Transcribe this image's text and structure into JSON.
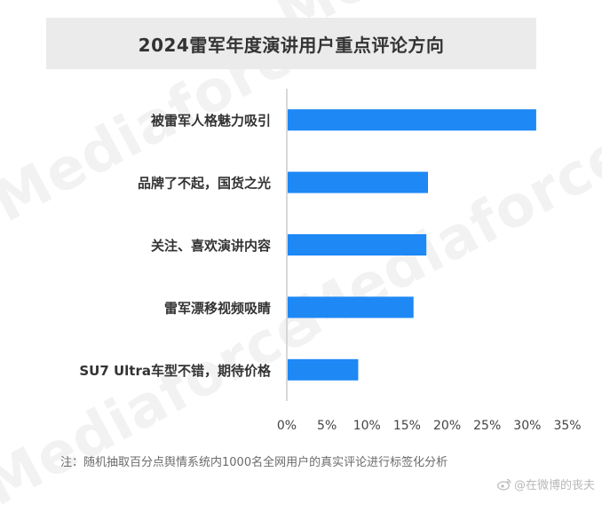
{
  "watermark": {
    "brand": "Mediaforce"
  },
  "title": "2024雷军年度演讲用户重点评论方向",
  "note": "注：随机抽取百分点舆情系统内1000名全网用户的真实评论进行标签化分析",
  "credit": "@在微博的丧夫",
  "colors": {
    "bar": "#1e88f5",
    "axis": "#cccccc",
    "title_bg": "#ebebeb"
  },
  "chart_data": {
    "type": "bar",
    "orientation": "horizontal",
    "title": "2024雷军年度演讲用户重点评论方向",
    "categories": [
      "被雷军人格魅力吸引",
      "品牌了不起，国货之光",
      "关注、喜欢演讲内容",
      "雷军漂移视频吸睛",
      "SU7 Ultra车型不错，期待价格"
    ],
    "values": [
      31,
      17.5,
      17.3,
      15.7,
      8.8
    ],
    "xlim": [
      0,
      35
    ],
    "xticks": [
      "0%",
      "5%",
      "10%",
      "15%",
      "20%",
      "25%",
      "30%",
      "35%"
    ],
    "xtick_values": [
      0,
      5,
      10,
      15,
      20,
      25,
      30,
      35
    ],
    "xlabel": "",
    "ylabel": "",
    "grid": false,
    "legend": "none"
  }
}
